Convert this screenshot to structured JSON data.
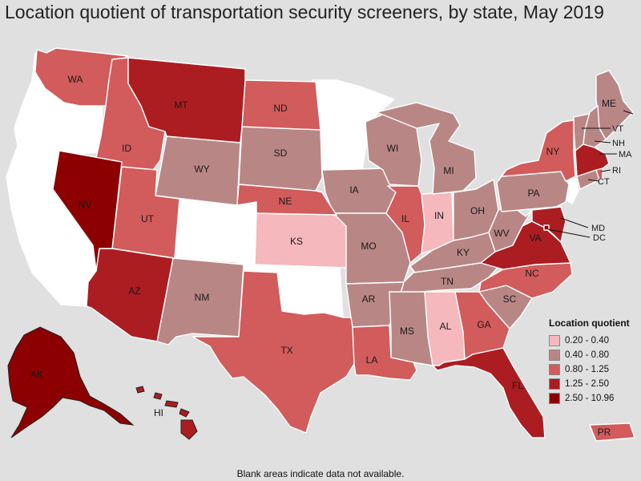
{
  "title": "Location quotient of transportation security screeners, by state, May 2019",
  "legend": {
    "title": "Location quotient",
    "items": [
      {
        "label": "0.20 - 0.40",
        "color": "#f4b8bd"
      },
      {
        "label": "0.40 - 0.80",
        "color": "#b98686"
      },
      {
        "label": "0.80 - 1.25",
        "color": "#d25b5b"
      },
      {
        "label": "1.25 - 2.50",
        "color": "#ab1d21"
      },
      {
        "label": "2.50 - 10.96",
        "color": "#8c0001"
      }
    ]
  },
  "footnote": "Blank areas indicate data not available.",
  "colors": {
    "no_data": "#ffffff",
    "c1": "#f4b8bd",
    "c2": "#b98686",
    "c3": "#d25b5b",
    "c4": "#ab1d21",
    "c5": "#8c0001"
  },
  "states": {
    "AK": "AK",
    "AL": "AL",
    "AR": "AR",
    "AZ": "AZ",
    "CT": "CT",
    "DC": "DC",
    "FL": "FL",
    "GA": "GA",
    "HI": "HI",
    "IA": "IA",
    "ID": "ID",
    "IL": "IL",
    "IN": "IN",
    "KS": "KS",
    "KY": "KY",
    "LA": "LA",
    "MA": "MA",
    "MD": "MD",
    "ME": "ME",
    "MI": "MI",
    "MO": "MO",
    "MS": "MS",
    "MT": "MT",
    "NC": "NC",
    "ND": "ND",
    "NE": "NE",
    "NH": "NH",
    "NM": "NM",
    "NV": "NV",
    "NY": "NY",
    "OH": "OH",
    "PA": "PA",
    "PR": "PR",
    "RI": "RI",
    "SC": "SC",
    "SD": "SD",
    "TN": "TN",
    "TX": "TX",
    "UT": "UT",
    "VA": "VA",
    "VT": "VT",
    "WA": "WA",
    "WI": "WI",
    "WV": "WV",
    "WY": "WY"
  }
}
